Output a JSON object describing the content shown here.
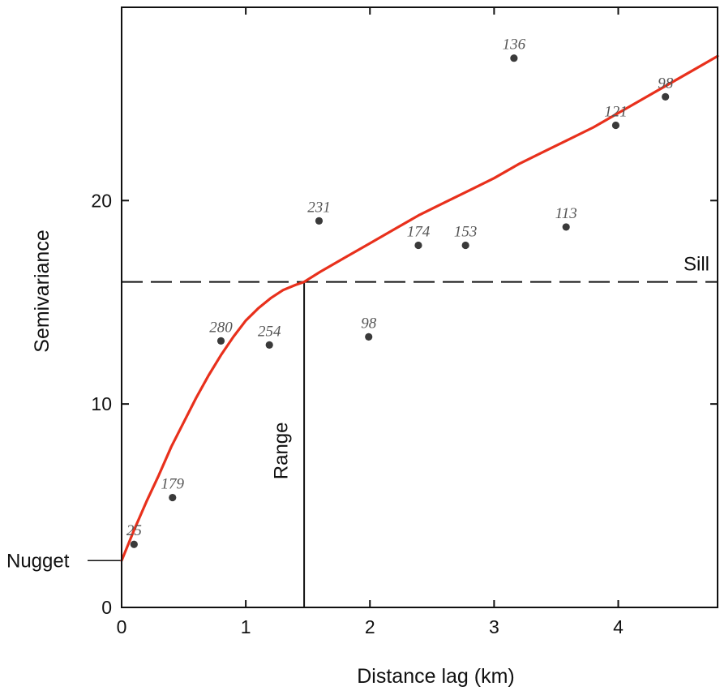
{
  "chart_data": {
    "type": "scatter",
    "title": "",
    "xlabel": "Distance lag (km)",
    "ylabel": "Semivariance",
    "xlim": [
      0,
      4.8
    ],
    "ylim": [
      0,
      29.5
    ],
    "xticks": [
      0,
      1,
      2,
      3,
      4
    ],
    "yticks": [
      0,
      10,
      20
    ],
    "x_tick_labels": [
      "0",
      "1",
      "2",
      "3",
      "4"
    ],
    "y_tick_labels": [
      "0",
      "10",
      "20"
    ],
    "grid": false,
    "points": [
      {
        "x": 0.1,
        "y": 3.1,
        "label": "25"
      },
      {
        "x": 0.41,
        "y": 5.4,
        "label": "179"
      },
      {
        "x": 0.8,
        "y": 13.1,
        "label": "280"
      },
      {
        "x": 1.19,
        "y": 12.9,
        "label": "254"
      },
      {
        "x": 1.59,
        "y": 19.0,
        "label": "231"
      },
      {
        "x": 1.99,
        "y": 13.3,
        "label": "98"
      },
      {
        "x": 2.39,
        "y": 17.8,
        "label": "174"
      },
      {
        "x": 2.77,
        "y": 17.8,
        "label": "153"
      },
      {
        "x": 3.16,
        "y": 27.0,
        "label": "136"
      },
      {
        "x": 3.58,
        "y": 18.7,
        "label": "113"
      },
      {
        "x": 3.98,
        "y": 23.7,
        "label": "121"
      },
      {
        "x": 4.38,
        "y": 25.1,
        "label": "98"
      }
    ],
    "fitted_curve": {
      "color": "#e8301c",
      "points": [
        [
          0,
          2.3
        ],
        [
          0.1,
          3.8
        ],
        [
          0.2,
          5.2
        ],
        [
          0.3,
          6.5
        ],
        [
          0.4,
          7.9
        ],
        [
          0.5,
          9.1
        ],
        [
          0.6,
          10.3
        ],
        [
          0.7,
          11.4
        ],
        [
          0.8,
          12.4
        ],
        [
          0.9,
          13.3
        ],
        [
          1.0,
          14.1
        ],
        [
          1.1,
          14.7
        ],
        [
          1.2,
          15.2
        ],
        [
          1.3,
          15.6
        ],
        [
          1.4,
          15.85
        ],
        [
          1.47,
          16.0
        ],
        [
          1.6,
          16.5
        ],
        [
          1.8,
          17.2
        ],
        [
          2.0,
          17.9
        ],
        [
          2.2,
          18.6
        ],
        [
          2.4,
          19.3
        ],
        [
          2.6,
          19.9
        ],
        [
          2.8,
          20.5
        ],
        [
          3.0,
          21.1
        ],
        [
          3.2,
          21.8
        ],
        [
          3.4,
          22.4
        ],
        [
          3.6,
          23.0
        ],
        [
          3.8,
          23.6
        ],
        [
          4.0,
          24.3
        ],
        [
          4.2,
          25.0
        ],
        [
          4.4,
          25.7
        ],
        [
          4.6,
          26.4
        ],
        [
          4.8,
          27.1
        ]
      ]
    },
    "sill": {
      "y": 16.0,
      "label": "Sill"
    },
    "range": {
      "x": 1.47,
      "label": "Range"
    },
    "nugget": {
      "y": 2.3,
      "label": "Nugget"
    },
    "marker_color": "#3a3a3a",
    "label_color": "#555555"
  }
}
